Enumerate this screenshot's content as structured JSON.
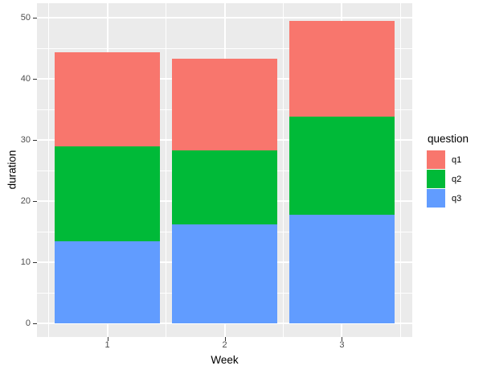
{
  "figure": {
    "background": "#FFFFFF",
    "panel_background": "#EBEBEB",
    "grid_color": "#FFFFFF",
    "tick_mark_color": "#333333",
    "tick_label_color": "#4D4D4D",
    "axis_title_color": "#000000"
  },
  "chart_data": {
    "type": "bar",
    "stacked": true,
    "title": "",
    "xlabel": "Week",
    "ylabel": "duration",
    "categories": [
      "1",
      "2",
      "3"
    ],
    "series": [
      {
        "name": "q1",
        "color": "#F8766D",
        "values": [
          15.3,
          15.0,
          15.7
        ]
      },
      {
        "name": "q2",
        "color": "#00BA38",
        "values": [
          15.6,
          12.1,
          16.0
        ]
      },
      {
        "name": "q3",
        "color": "#619CFF",
        "values": [
          13.4,
          16.2,
          17.8
        ]
      }
    ],
    "stack_order_bottom_to_top": [
      "q3",
      "q2",
      "q1"
    ],
    "totals": [
      44.3,
      43.3,
      49.5
    ],
    "ylim": [
      0,
      50
    ],
    "yticks": [
      0,
      10,
      20,
      30,
      40,
      50
    ],
    "grid": "major-and-minor",
    "legend": {
      "title": "question",
      "position": "right",
      "items": [
        "q1",
        "q2",
        "q3"
      ]
    }
  }
}
